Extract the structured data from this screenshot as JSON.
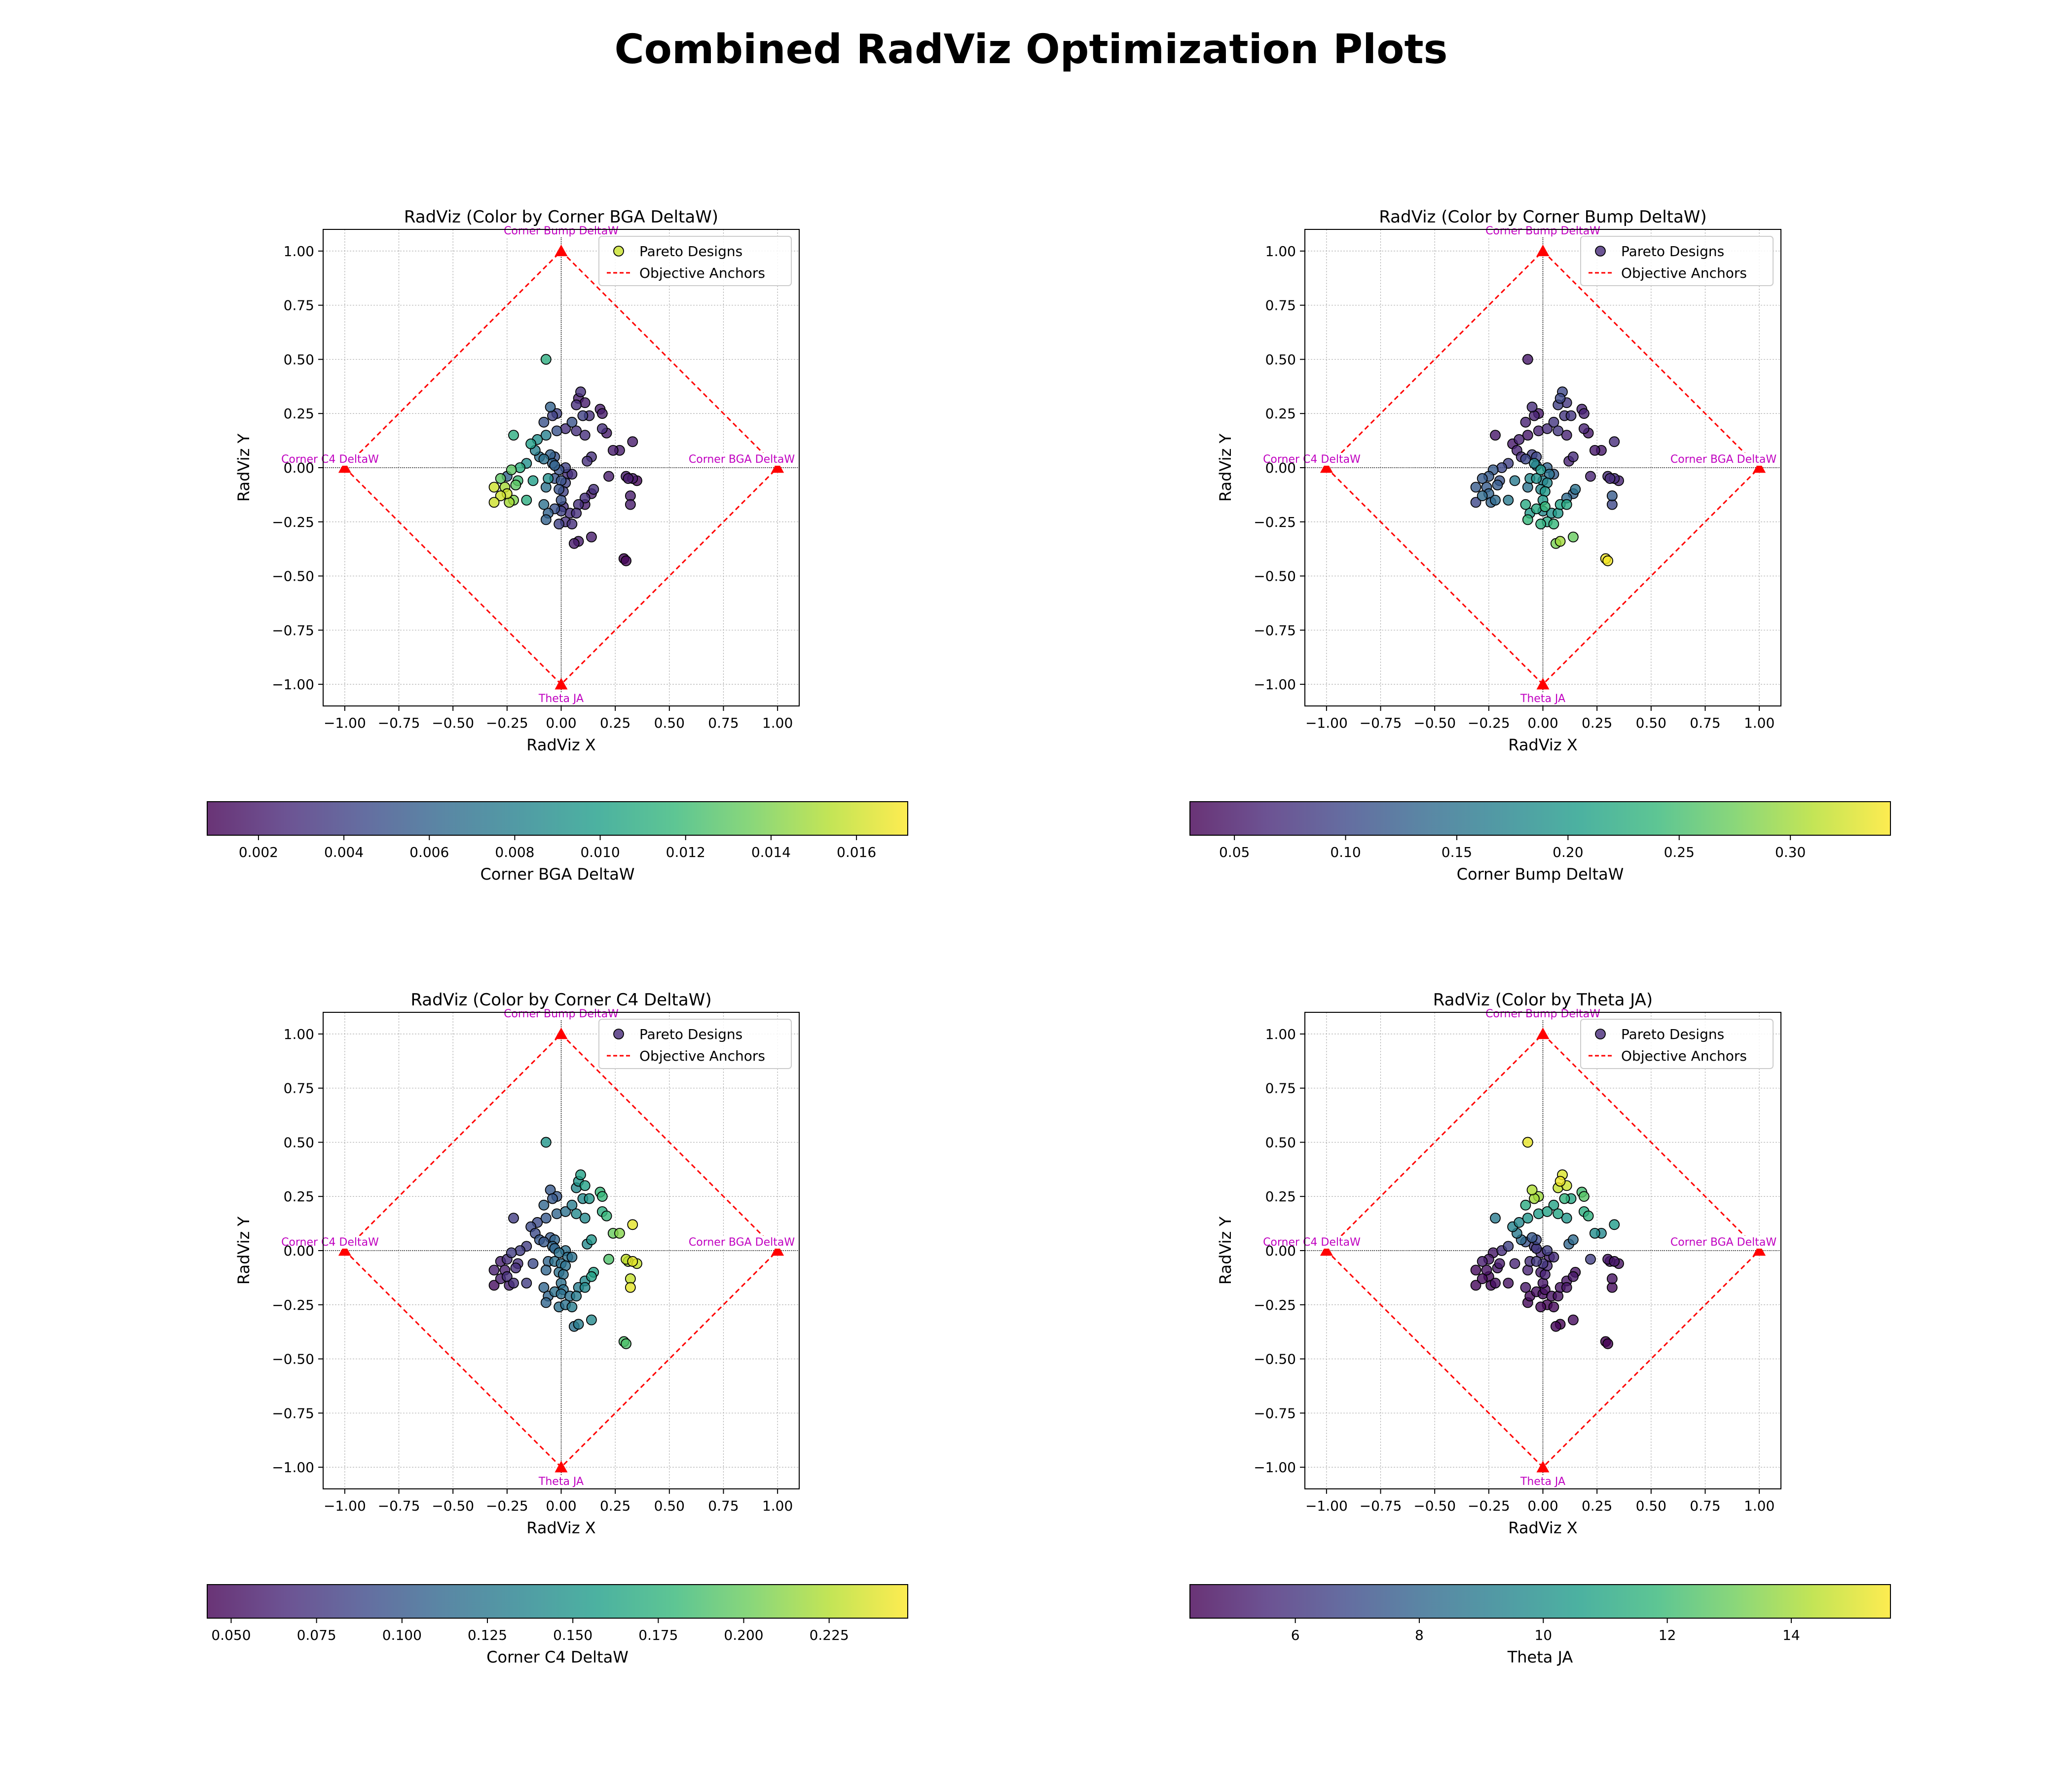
{
  "suptitle": "Combined RadViz Optimization Plots",
  "common": {
    "xlabel": "RadViz X",
    "ylabel": "RadViz Y",
    "xticks": [
      "−1.00",
      "−0.75",
      "−0.50",
      "−0.25",
      "0.00",
      "0.25",
      "0.50",
      "0.75",
      "1.00"
    ],
    "yticks": [
      "1.00",
      "0.75",
      "0.50",
      "0.25",
      "0.00",
      "−0.25",
      "−0.50",
      "−0.75",
      "−1.00"
    ],
    "legend": {
      "points": "Pareto Designs",
      "anchors": "Objective Anchors"
    },
    "anchor_labels": [
      "Corner Bump DeltaW",
      "Corner BGA DeltaW",
      "Theta JA",
      "Corner C4 DeltaW"
    ],
    "anchor_color": "#ff0000",
    "label_color": "#c000c0",
    "colormap": "viridis"
  },
  "chart_data": [
    {
      "type": "scatter",
      "title": "RadViz (Color by Corner BGA DeltaW)",
      "xlabel": "RadViz X",
      "ylabel": "RadViz Y",
      "xlim": [
        -1.1,
        1.1
      ],
      "ylim": [
        -1.1,
        1.1
      ],
      "grid": true,
      "legend_position": "upper right",
      "color_by": "Corner BGA DeltaW",
      "colorbar": {
        "label": "Corner BGA DeltaW",
        "range": [
          0.0008,
          0.0172
        ],
        "ticks": [
          "0.002",
          "0.004",
          "0.006",
          "0.008",
          "0.010",
          "0.012",
          "0.014",
          "0.016"
        ],
        "tick_values": [
          0.002,
          0.004,
          0.006,
          0.008,
          0.01,
          0.012,
          0.014,
          0.016
        ]
      },
      "anchors": [
        {
          "name": "Corner Bump DeltaW",
          "x": 0,
          "y": 1
        },
        {
          "name": "Corner BGA DeltaW",
          "x": 1,
          "y": 0
        },
        {
          "name": "Theta JA",
          "x": 0,
          "y": -1
        },
        {
          "name": "Corner C4 DeltaW",
          "x": -1,
          "y": 0
        }
      ],
      "series": [
        {
          "name": "Pareto Designs",
          "points": []
        }
      ]
    },
    {
      "type": "scatter",
      "title": "RadViz (Color by Corner Bump DeltaW)",
      "xlabel": "RadViz X",
      "ylabel": "RadViz Y",
      "xlim": [
        -1.1,
        1.1
      ],
      "ylim": [
        -1.1,
        1.1
      ],
      "grid": true,
      "legend_position": "upper right",
      "color_by": "Corner Bump DeltaW",
      "colorbar": {
        "label": "Corner Bump DeltaW",
        "range": [
          0.03,
          0.345
        ],
        "ticks": [
          "0.05",
          "0.10",
          "0.15",
          "0.20",
          "0.25",
          "0.30"
        ],
        "tick_values": [
          0.05,
          0.1,
          0.15,
          0.2,
          0.25,
          0.3
        ]
      },
      "anchors": [
        {
          "name": "Corner Bump DeltaW",
          "x": 0,
          "y": 1
        },
        {
          "name": "Corner BGA DeltaW",
          "x": 1,
          "y": 0
        },
        {
          "name": "Theta JA",
          "x": 0,
          "y": -1
        },
        {
          "name": "Corner C4 DeltaW",
          "x": -1,
          "y": 0
        }
      ],
      "series": [
        {
          "name": "Pareto Designs",
          "points": []
        }
      ]
    },
    {
      "type": "scatter",
      "title": "RadViz (Color by Corner C4 DeltaW)",
      "xlabel": "RadViz X",
      "ylabel": "RadViz Y",
      "xlim": [
        -1.1,
        1.1
      ],
      "ylim": [
        -1.1,
        1.1
      ],
      "grid": true,
      "legend_position": "upper right",
      "color_by": "Corner C4 DeltaW",
      "colorbar": {
        "label": "Corner C4 DeltaW",
        "range": [
          0.043,
          0.248
        ],
        "ticks": [
          "0.050",
          "0.075",
          "0.100",
          "0.125",
          "0.150",
          "0.175",
          "0.200",
          "0.225"
        ],
        "tick_values": [
          0.05,
          0.075,
          0.1,
          0.125,
          0.15,
          0.175,
          0.2,
          0.225
        ]
      },
      "anchors": [
        {
          "name": "Corner Bump DeltaW",
          "x": 0,
          "y": 1
        },
        {
          "name": "Corner BGA DeltaW",
          "x": 1,
          "y": 0
        },
        {
          "name": "Theta JA",
          "x": 0,
          "y": -1
        },
        {
          "name": "Corner C4 DeltaW",
          "x": -1,
          "y": 0
        }
      ],
      "series": [
        {
          "name": "Pareto Designs",
          "points": []
        }
      ]
    },
    {
      "type": "scatter",
      "title": "RadViz (Color by Theta JA)",
      "xlabel": "RadViz X",
      "ylabel": "RadViz Y",
      "xlim": [
        -1.1,
        1.1
      ],
      "ylim": [
        -1.1,
        1.1
      ],
      "grid": true,
      "legend_position": "upper right",
      "color_by": "Theta JA",
      "colorbar": {
        "label": "Theta JA",
        "range": [
          4.3,
          15.6
        ],
        "ticks": [
          "6",
          "8",
          "10",
          "12",
          "14"
        ],
        "tick_values": [
          6,
          8,
          10,
          12,
          14
        ]
      },
      "anchors": [
        {
          "name": "Corner Bump DeltaW",
          "x": 0,
          "y": 1
        },
        {
          "name": "Corner BGA DeltaW",
          "x": 1,
          "y": 0
        },
        {
          "name": "Theta JA",
          "x": 0,
          "y": -1
        },
        {
          "name": "Corner C4 DeltaW",
          "x": -1,
          "y": 0
        }
      ],
      "series": [
        {
          "name": "Pareto Designs",
          "points": []
        }
      ]
    }
  ],
  "points": [
    {
      "x": -0.07,
      "y": 0.5,
      "c": [
        0.011,
        0.05,
        0.15,
        15.2
      ]
    },
    {
      "x": 0.09,
      "y": 0.35,
      "c": [
        0.003,
        0.1,
        0.16,
        15.0
      ]
    },
    {
      "x": 0.08,
      "y": 0.32,
      "c": [
        0.002,
        0.1,
        0.15,
        15.4
      ]
    },
    {
      "x": 0.07,
      "y": 0.29,
      "c": [
        0.003,
        0.09,
        0.14,
        14.6
      ]
    },
    {
      "x": 0.11,
      "y": 0.3,
      "c": [
        0.002,
        0.08,
        0.16,
        14.8
      ]
    },
    {
      "x": -0.05,
      "y": 0.28,
      "c": [
        0.006,
        0.07,
        0.1,
        14.2
      ]
    },
    {
      "x": -0.02,
      "y": 0.25,
      "c": [
        0.004,
        0.05,
        0.1,
        13.9
      ]
    },
    {
      "x": -0.04,
      "y": 0.24,
      "c": [
        0.004,
        0.06,
        0.1,
        14.0
      ]
    },
    {
      "x": 0.18,
      "y": 0.27,
      "c": [
        0.002,
        0.06,
        0.18,
        12.2
      ]
    },
    {
      "x": 0.19,
      "y": 0.25,
      "c": [
        0.002,
        0.06,
        0.18,
        12.6
      ]
    },
    {
      "x": 0.1,
      "y": 0.24,
      "c": [
        0.004,
        0.08,
        0.14,
        11.6
      ]
    },
    {
      "x": 0.13,
      "y": 0.24,
      "c": [
        0.003,
        0.08,
        0.15,
        11.0
      ]
    },
    {
      "x": 0.05,
      "y": 0.21,
      "c": [
        0.005,
        0.08,
        0.13,
        10.8
      ]
    },
    {
      "x": -0.08,
      "y": 0.21,
      "c": [
        0.005,
        0.06,
        0.11,
        11.2
      ]
    },
    {
      "x": 0.02,
      "y": 0.18,
      "c": [
        0.003,
        0.07,
        0.12,
        10.8
      ]
    },
    {
      "x": -0.02,
      "y": 0.17,
      "c": [
        0.005,
        0.06,
        0.11,
        10.6
      ]
    },
    {
      "x": 0.07,
      "y": 0.17,
      "c": [
        0.003,
        0.08,
        0.14,
        11.0
      ]
    },
    {
      "x": 0.19,
      "y": 0.18,
      "c": [
        0.003,
        0.06,
        0.17,
        11.4
      ]
    },
    {
      "x": 0.21,
      "y": 0.16,
      "c": [
        0.002,
        0.05,
        0.18,
        11.5
      ]
    },
    {
      "x": 0.11,
      "y": 0.15,
      "c": [
        0.003,
        0.06,
        0.14,
        10.2
      ]
    },
    {
      "x": -0.22,
      "y": 0.15,
      "c": [
        0.011,
        0.05,
        0.08,
        9.0
      ]
    },
    {
      "x": -0.07,
      "y": 0.15,
      "c": [
        0.008,
        0.05,
        0.1,
        10.2
      ]
    },
    {
      "x": 0.33,
      "y": 0.12,
      "c": [
        0.002,
        0.07,
        0.24,
        10.5
      ]
    },
    {
      "x": -0.11,
      "y": 0.13,
      "c": [
        0.009,
        0.06,
        0.09,
        9.6
      ]
    },
    {
      "x": -0.14,
      "y": 0.11,
      "c": [
        0.01,
        0.05,
        0.09,
        9.4
      ]
    },
    {
      "x": -0.12,
      "y": 0.08,
      "c": [
        0.008,
        0.06,
        0.09,
        9.0
      ]
    },
    {
      "x": -0.1,
      "y": 0.05,
      "c": [
        0.007,
        0.07,
        0.1,
        8.2
      ]
    },
    {
      "x": -0.05,
      "y": 0.06,
      "c": [
        0.006,
        0.09,
        0.1,
        7.4
      ]
    },
    {
      "x": -0.08,
      "y": 0.04,
      "c": [
        0.007,
        0.1,
        0.1,
        7.2
      ]
    },
    {
      "x": -0.03,
      "y": 0.05,
      "c": [
        0.005,
        0.1,
        0.11,
        6.8
      ]
    },
    {
      "x": 0.27,
      "y": 0.08,
      "c": [
        0.002,
        0.05,
        0.21,
        9.6
      ]
    },
    {
      "x": 0.24,
      "y": 0.08,
      "c": [
        0.002,
        0.05,
        0.2,
        9.8
      ]
    },
    {
      "x": 0.14,
      "y": 0.05,
      "c": [
        0.003,
        0.07,
        0.15,
        8.2
      ]
    },
    {
      "x": 0.12,
      "y": 0.03,
      "c": [
        0.003,
        0.06,
        0.14,
        8.0
      ]
    },
    {
      "x": -0.04,
      "y": 0.02,
      "c": [
        0.006,
        0.18,
        0.11,
        6.0
      ]
    },
    {
      "x": -0.16,
      "y": 0.02,
      "c": [
        0.009,
        0.09,
        0.08,
        6.5
      ]
    },
    {
      "x": -0.19,
      "y": 0.0,
      "c": [
        0.011,
        0.1,
        0.08,
        5.8
      ]
    },
    {
      "x": -0.03,
      "y": 0.01,
      "c": [
        0.006,
        0.14,
        0.11,
        6.2
      ]
    },
    {
      "x": 0.02,
      "y": 0.0,
      "c": [
        0.004,
        0.13,
        0.12,
        6.4
      ]
    },
    {
      "x": -0.01,
      "y": -0.01,
      "c": [
        0.005,
        0.2,
        0.12,
        5.6
      ]
    },
    {
      "x": -0.23,
      "y": -0.01,
      "c": [
        0.013,
        0.12,
        0.08,
        5.0
      ]
    },
    {
      "x": -0.25,
      "y": -0.04,
      "c": [
        0.006,
        0.12,
        0.07,
        5.0
      ]
    },
    {
      "x": 0.03,
      "y": -0.03,
      "c": [
        0.003,
        0.15,
        0.12,
        5.4
      ]
    },
    {
      "x": 0.05,
      "y": -0.03,
      "c": [
        0.003,
        0.12,
        0.12,
        5.8
      ]
    },
    {
      "x": 0.22,
      "y": -0.04,
      "c": [
        0.002,
        0.06,
        0.19,
        6.4
      ]
    },
    {
      "x": 0.3,
      "y": -0.04,
      "c": [
        0.002,
        0.07,
        0.23,
        5.0
      ]
    },
    {
      "x": 0.33,
      "y": -0.05,
      "c": [
        0.002,
        0.07,
        0.24,
        5.0
      ]
    },
    {
      "x": 0.35,
      "y": -0.06,
      "c": [
        0.001,
        0.06,
        0.23,
        4.8
      ]
    },
    {
      "x": 0.31,
      "y": -0.05,
      "c": [
        0.002,
        0.07,
        0.22,
        4.9
      ]
    },
    {
      "x": -0.06,
      "y": -0.05,
      "c": [
        0.009,
        0.18,
        0.11,
        5.8
      ]
    },
    {
      "x": -0.03,
      "y": -0.05,
      "c": [
        0.005,
        0.19,
        0.12,
        6.2
      ]
    },
    {
      "x": 0.0,
      "y": -0.06,
      "c": [
        0.005,
        0.17,
        0.12,
        6.0
      ]
    },
    {
      "x": -0.28,
      "y": -0.05,
      "c": [
        0.013,
        0.12,
        0.06,
        5.2
      ]
    },
    {
      "x": -0.2,
      "y": -0.06,
      "c": [
        0.012,
        0.11,
        0.07,
        5.1
      ]
    },
    {
      "x": -0.13,
      "y": -0.06,
      "c": [
        0.01,
        0.16,
        0.09,
        5.5
      ]
    },
    {
      "x": 0.02,
      "y": -0.07,
      "c": [
        0.004,
        0.18,
        0.12,
        5.6
      ]
    },
    {
      "x": -0.21,
      "y": -0.08,
      "c": [
        0.013,
        0.12,
        0.07,
        5.0
      ]
    },
    {
      "x": -0.31,
      "y": -0.09,
      "c": [
        0.016,
        0.12,
        0.06,
        4.6
      ]
    },
    {
      "x": -0.26,
      "y": -0.09,
      "c": [
        0.015,
        0.12,
        0.06,
        4.8
      ]
    },
    {
      "x": -0.07,
      "y": -0.09,
      "c": [
        0.007,
        0.15,
        0.11,
        5.4
      ]
    },
    {
      "x": -0.01,
      "y": -0.1,
      "c": [
        0.005,
        0.18,
        0.12,
        5.2
      ]
    },
    {
      "x": 0.01,
      "y": -0.11,
      "c": [
        0.004,
        0.2,
        0.12,
        5.4
      ]
    },
    {
      "x": 0.15,
      "y": -0.1,
      "c": [
        0.003,
        0.15,
        0.16,
        4.8
      ]
    },
    {
      "x": 0.14,
      "y": -0.12,
      "c": [
        0.002,
        0.13,
        0.16,
        5.0
      ]
    },
    {
      "x": -0.25,
      "y": -0.12,
      "c": [
        0.016,
        0.13,
        0.07,
        4.6
      ]
    },
    {
      "x": -0.28,
      "y": -0.13,
      "c": [
        0.016,
        0.14,
        0.06,
        4.6
      ]
    },
    {
      "x": -0.22,
      "y": -0.15,
      "c": [
        0.014,
        0.14,
        0.07,
        4.7
      ]
    },
    {
      "x": -0.24,
      "y": -0.16,
      "c": [
        0.015,
        0.13,
        0.06,
        4.6
      ]
    },
    {
      "x": -0.31,
      "y": -0.16,
      "c": [
        0.016,
        0.1,
        0.05,
        4.5
      ]
    },
    {
      "x": -0.16,
      "y": -0.15,
      "c": [
        0.011,
        0.16,
        0.08,
        4.8
      ]
    },
    {
      "x": 0.32,
      "y": -0.13,
      "c": [
        0.002,
        0.12,
        0.23,
        4.8
      ]
    },
    {
      "x": 0.32,
      "y": -0.17,
      "c": [
        0.002,
        0.1,
        0.24,
        4.6
      ]
    },
    {
      "x": 0.11,
      "y": -0.14,
      "c": [
        0.003,
        0.14,
        0.14,
        4.9
      ]
    },
    {
      "x": 0.0,
      "y": -0.15,
      "c": [
        0.005,
        0.2,
        0.12,
        5.0
      ]
    },
    {
      "x": -0.08,
      "y": -0.17,
      "c": [
        0.007,
        0.22,
        0.11,
        5.0
      ]
    },
    {
      "x": 0.01,
      "y": -0.18,
      "c": [
        0.003,
        0.24,
        0.12,
        4.8
      ]
    },
    {
      "x": 0.08,
      "y": -0.17,
      "c": [
        0.003,
        0.21,
        0.13,
        4.9
      ]
    },
    {
      "x": 0.11,
      "y": -0.17,
      "c": [
        0.002,
        0.22,
        0.14,
        4.9
      ]
    },
    {
      "x": -0.03,
      "y": -0.19,
      "c": [
        0.005,
        0.22,
        0.12,
        4.7
      ]
    },
    {
      "x": 0.0,
      "y": -0.2,
      "c": [
        0.004,
        0.18,
        0.12,
        4.7
      ]
    },
    {
      "x": -0.06,
      "y": -0.21,
      "c": [
        0.006,
        0.2,
        0.11,
        4.6
      ]
    },
    {
      "x": 0.04,
      "y": -0.21,
      "c": [
        0.003,
        0.19,
        0.12,
        4.8
      ]
    },
    {
      "x": 0.07,
      "y": -0.21,
      "c": [
        0.003,
        0.2,
        0.13,
        4.8
      ]
    },
    {
      "x": -0.07,
      "y": -0.24,
      "c": [
        0.006,
        0.24,
        0.11,
        4.5
      ]
    },
    {
      "x": -0.01,
      "y": -0.26,
      "c": [
        0.004,
        0.23,
        0.12,
        4.5
      ]
    },
    {
      "x": 0.02,
      "y": -0.25,
      "c": [
        0.003,
        0.22,
        0.12,
        4.4
      ]
    },
    {
      "x": 0.05,
      "y": -0.26,
      "c": [
        0.003,
        0.24,
        0.13,
        4.5
      ]
    },
    {
      "x": 0.08,
      "y": -0.34,
      "c": [
        0.002,
        0.3,
        0.13,
        4.3
      ]
    },
    {
      "x": 0.06,
      "y": -0.35,
      "c": [
        0.002,
        0.28,
        0.12,
        4.4
      ]
    },
    {
      "x": 0.14,
      "y": -0.32,
      "c": [
        0.002,
        0.27,
        0.14,
        4.6
      ]
    },
    {
      "x": 0.29,
      "y": -0.42,
      "c": [
        0.001,
        0.34,
        0.19,
        4.3
      ]
    },
    {
      "x": 0.3,
      "y": -0.43,
      "c": [
        0.001,
        0.34,
        0.19,
        4.3
      ]
    }
  ]
}
